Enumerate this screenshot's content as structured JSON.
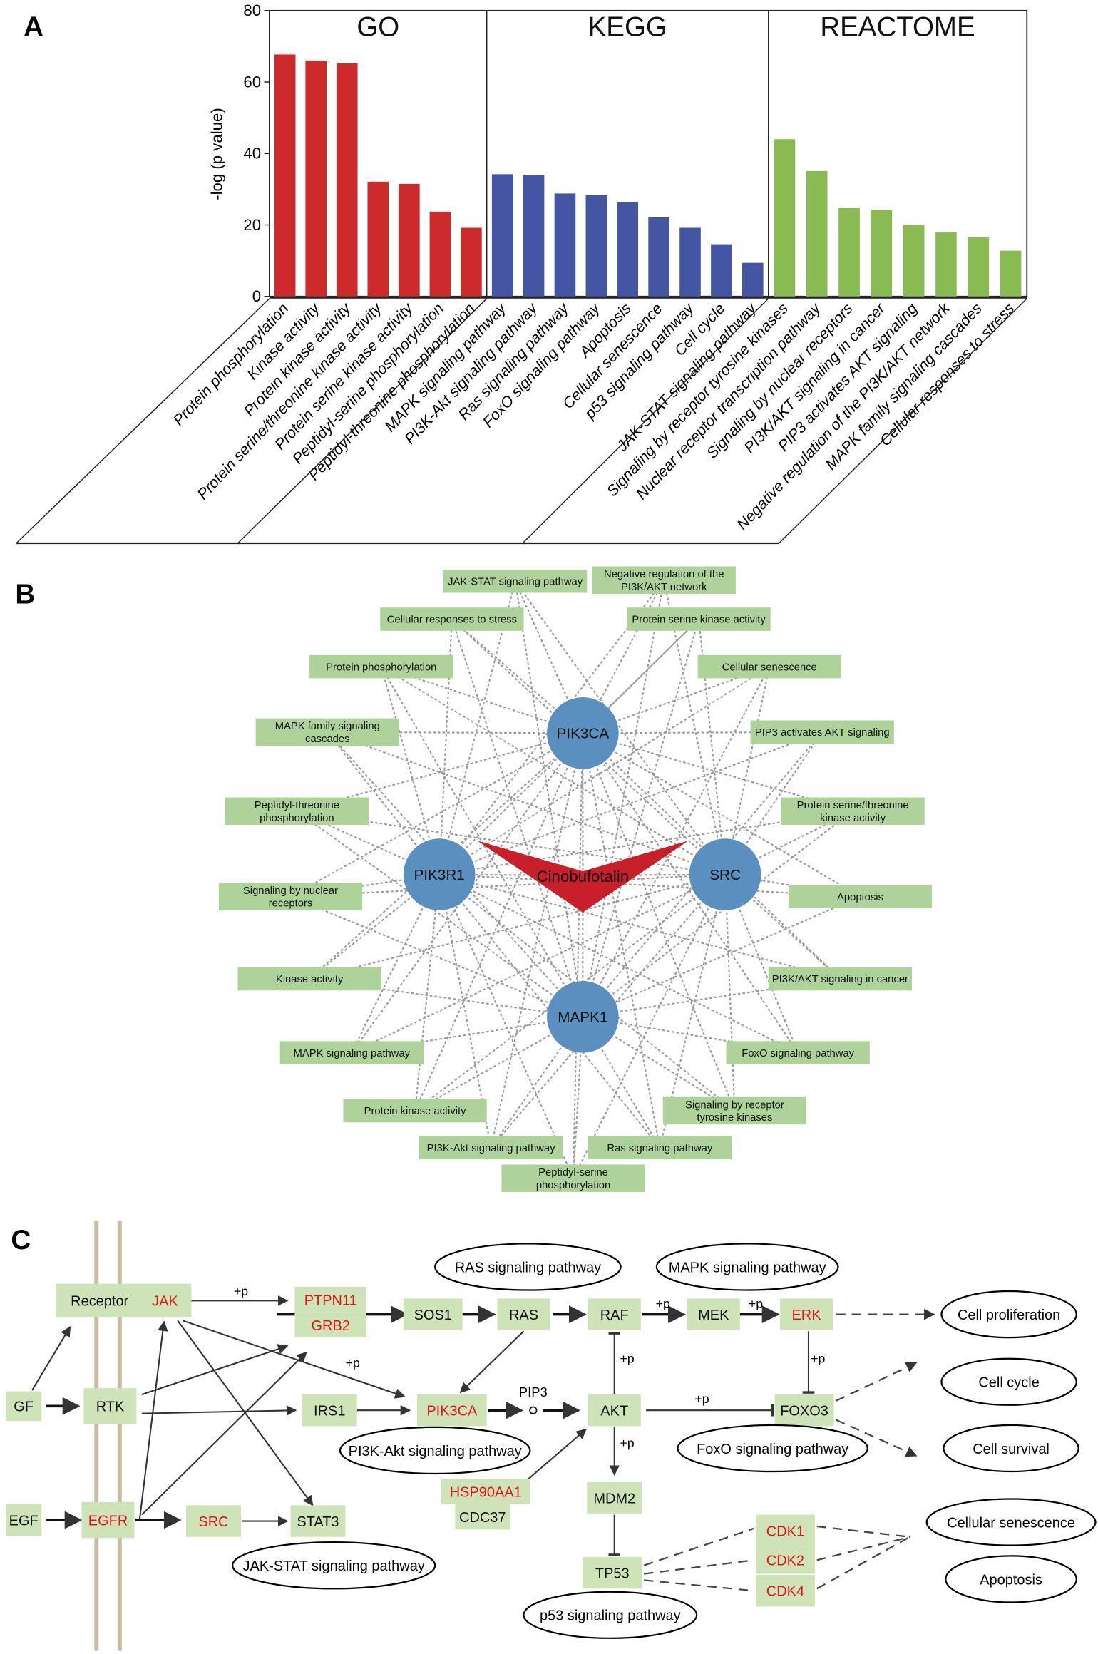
{
  "panels": {
    "a": "A",
    "b": "B",
    "c": "C"
  },
  "chart_data": {
    "type": "bar",
    "ylabel": "-log (p value)",
    "ylim": [
      0,
      80
    ],
    "yticks": [
      0,
      20,
      40,
      60,
      80
    ],
    "grid": false,
    "groups": [
      {
        "name": "GO",
        "color": "#cc2a2b",
        "categories": [
          "Protein phosphorylation",
          "Kinase activity",
          "Protein kinase activity",
          "Protein serine/threonine kinase activity",
          "Protein serine kinase activity",
          "Peptidyl-serine phosphorylation",
          "Peptidyl-threonine phosphorylation"
        ],
        "values": [
          67.7,
          66.0,
          65.2,
          32.1,
          31.5,
          23.7,
          19.2
        ]
      },
      {
        "name": "KEGG",
        "color": "#4355a3",
        "categories": [
          "MAPK signaling pathway",
          "PI3K-Akt signaling pathway",
          "Ras signaling pathway",
          "FoxO signaling pathway",
          "Apoptosis",
          "Cellular senescence",
          "p53 signaling pathway",
          "Cell cycle",
          "JAK-STAT signaling pathway"
        ],
        "values": [
          34.2,
          34.0,
          28.8,
          28.3,
          26.4,
          22.1,
          19.2,
          14.6,
          9.4
        ]
      },
      {
        "name": "REACTOME",
        "color": "#89bb52",
        "categories": [
          "Signaling by receptor tyrosine kinases",
          "Nuclear receptor transcription pathway",
          "Signaling by nuclear receptors",
          "PI3K/AKT signaling in cancer",
          "PIP3 activates AKT signaling",
          "Negative regulation of the PI3K/AKT network",
          "MAPK family signaling cascades",
          "Cellular responses to stress"
        ],
        "values": [
          44.0,
          35.1,
          24.7,
          24.2,
          19.9,
          17.9,
          16.5,
          12.8
        ]
      }
    ]
  },
  "network": {
    "compound": "Cinobufotalin",
    "compound_color": "#c8202a",
    "gene_color": "#5b8fbf",
    "term_color": "#aed39a",
    "genes": [
      "PIK3CA",
      "PIK3R1",
      "SRC",
      "MAPK1"
    ],
    "terms": [
      [
        "JAK-STAT signaling pathway"
      ],
      [
        "Negative regulation of the",
        "PI3K/AKT network"
      ],
      [
        "Cellular responses to stress"
      ],
      [
        "Protein serine kinase activity"
      ],
      [
        "Protein phosphorylation"
      ],
      [
        "Cellular senescence"
      ],
      [
        "MAPK family signaling",
        "cascades"
      ],
      [
        "PIP3 activates AKT signaling"
      ],
      [
        "Peptidyl-threonine",
        "phosphorylation"
      ],
      [
        "Protein serine/threonine",
        "kinase activity"
      ],
      [
        "Signaling by nuclear",
        "receptors"
      ],
      [
        "Apoptosis"
      ],
      [
        "Kinase activity"
      ],
      [
        "PI3K/AKT signaling in cancer"
      ],
      [
        "MAPK signaling pathway"
      ],
      [
        "FoxO signaling pathway"
      ],
      [
        "Protein kinase activity"
      ],
      [
        "Signaling by receptor",
        "tyrosine kinases"
      ],
      [
        "PI3K-Akt signaling pathway"
      ],
      [
        "Ras signaling pathway"
      ],
      [
        "Peptidyl-serine",
        "phosphorylation"
      ]
    ]
  },
  "pathway": {
    "target_color": "#e0141e",
    "phos_label": "+p",
    "pip3_label": "PIP3",
    "nodes": [
      {
        "label": "Receptor",
        "target": false
      },
      {
        "label": "JAK",
        "target": true
      },
      {
        "label": "PTPN11",
        "target": true
      },
      {
        "label": "GRB2",
        "target": true
      },
      {
        "label": "SOS1",
        "target": false
      },
      {
        "label": "RAS",
        "target": false
      },
      {
        "label": "RAF",
        "target": false
      },
      {
        "label": "MEK",
        "target": false
      },
      {
        "label": "ERK",
        "target": true
      },
      {
        "label": "GF",
        "target": false
      },
      {
        "label": "RTK",
        "target": false
      },
      {
        "label": "IRS1",
        "target": false
      },
      {
        "label": "PIK3CA",
        "target": true
      },
      {
        "label": "AKT",
        "target": false
      },
      {
        "label": "FOXO3",
        "target": false
      },
      {
        "label": "HSP90AA1",
        "target": true
      },
      {
        "label": "CDC37",
        "target": false
      },
      {
        "label": "MDM2",
        "target": false
      },
      {
        "label": "TP53",
        "target": false
      },
      {
        "label": "CDK1",
        "target": true
      },
      {
        "label": "CDK2",
        "target": true
      },
      {
        "label": "CDK4",
        "target": true
      },
      {
        "label": "EGF",
        "target": false
      },
      {
        "label": "EGFR",
        "target": true
      },
      {
        "label": "SRC",
        "target": true
      },
      {
        "label": "STAT3",
        "target": false
      }
    ],
    "pathways": [
      "RAS signaling pathway",
      "MAPK signaling pathway",
      "PI3K-Akt signaling pathway",
      "FoxO signaling pathway",
      "JAK-STAT signaling pathway",
      "p53 signaling pathway"
    ],
    "outcomes": [
      "Cell proliferation",
      "Cell cycle",
      "Cell survival",
      "Cellular senescence",
      "Apoptosis"
    ]
  }
}
